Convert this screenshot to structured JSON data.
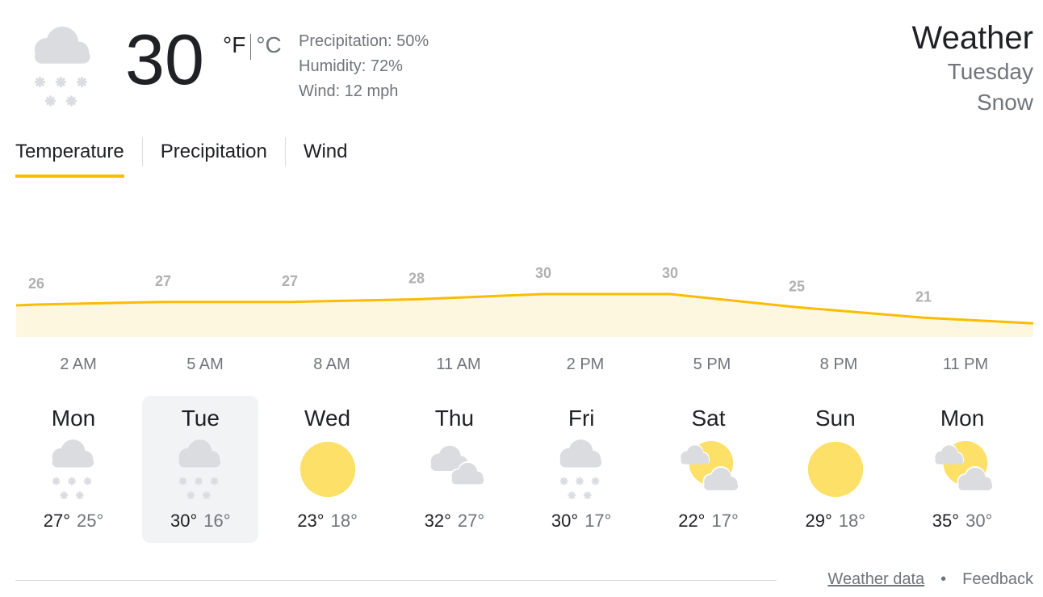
{
  "current": {
    "temperature": "30",
    "unit_f": "°F",
    "unit_c": "°C",
    "precipitation": "Precipitation: 50%",
    "humidity": "Humidity: 72%",
    "wind": "Wind: 12 mph",
    "icon": "snow-icon"
  },
  "header": {
    "title": "Weather",
    "day": "Tuesday",
    "condition": "Snow"
  },
  "tabs": [
    {
      "label": "Temperature",
      "active": true
    },
    {
      "label": "Precipitation"
    },
    {
      "label": "Wind"
    }
  ],
  "chart_data": {
    "type": "area",
    "x": [
      "2 AM",
      "5 AM",
      "8 AM",
      "11 AM",
      "2 PM",
      "5 PM",
      "8 PM",
      "11 PM"
    ],
    "values": [
      26,
      27,
      27,
      28,
      30,
      30,
      25,
      21
    ],
    "color": "#fbbc04",
    "fill": "#fef7e0"
  },
  "days": [
    {
      "name": "Mon",
      "icon": "snow",
      "high": "27°",
      "low": "25°"
    },
    {
      "name": "Tue",
      "icon": "snow",
      "high": "30°",
      "low": "16°",
      "selected": true
    },
    {
      "name": "Wed",
      "icon": "sunny",
      "high": "23°",
      "low": "18°"
    },
    {
      "name": "Thu",
      "icon": "cloudy",
      "high": "32°",
      "low": "27°"
    },
    {
      "name": "Fri",
      "icon": "snow",
      "high": "30°",
      "low": "17°"
    },
    {
      "name": "Sat",
      "icon": "partly-cloudy",
      "high": "22°",
      "low": "17°"
    },
    {
      "name": "Sun",
      "icon": "sunny",
      "high": "29°",
      "low": "18°"
    },
    {
      "name": "Mon",
      "icon": "partly-cloudy",
      "high": "35°",
      "low": "30°"
    }
  ],
  "footer": {
    "weather_data": "Weather data",
    "separator": "•",
    "feedback": "Feedback"
  }
}
